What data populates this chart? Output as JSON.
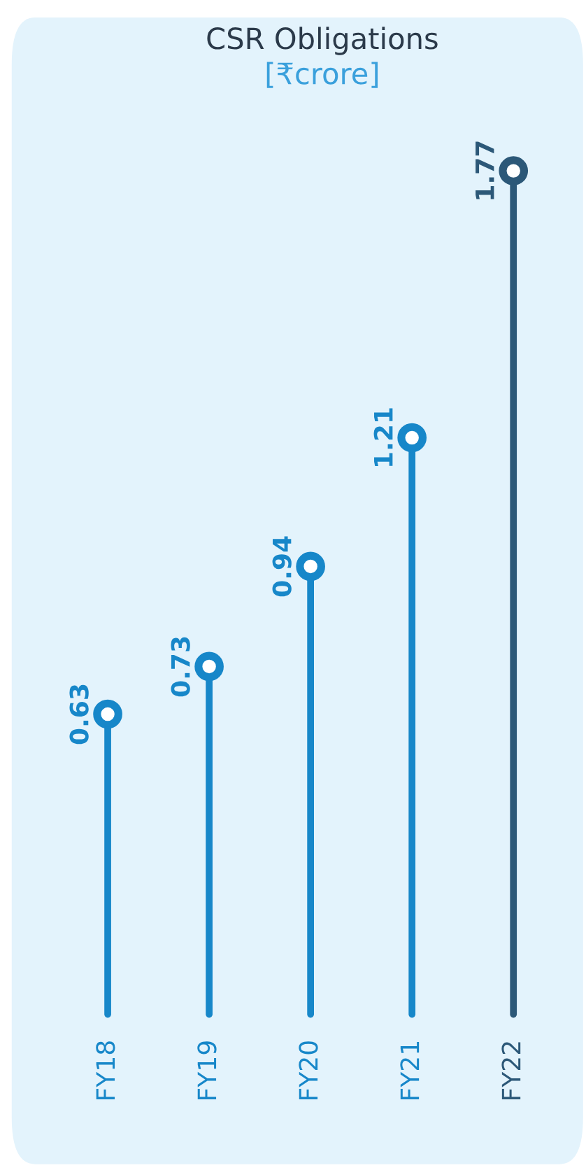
{
  "chart_data": {
    "type": "lollipop",
    "title": "CSR Obligations",
    "subtitle": "[₹crore]",
    "categories": [
      "FY18",
      "FY19",
      "FY20",
      "FY21",
      "FY22"
    ],
    "values": [
      0.63,
      0.73,
      0.94,
      1.21,
      1.77
    ],
    "colors": [
      "#1787c9",
      "#1787c9",
      "#1787c9",
      "#1787c9",
      "#2c5878"
    ],
    "data_labels": true,
    "marker": "circle",
    "legend": false
  }
}
